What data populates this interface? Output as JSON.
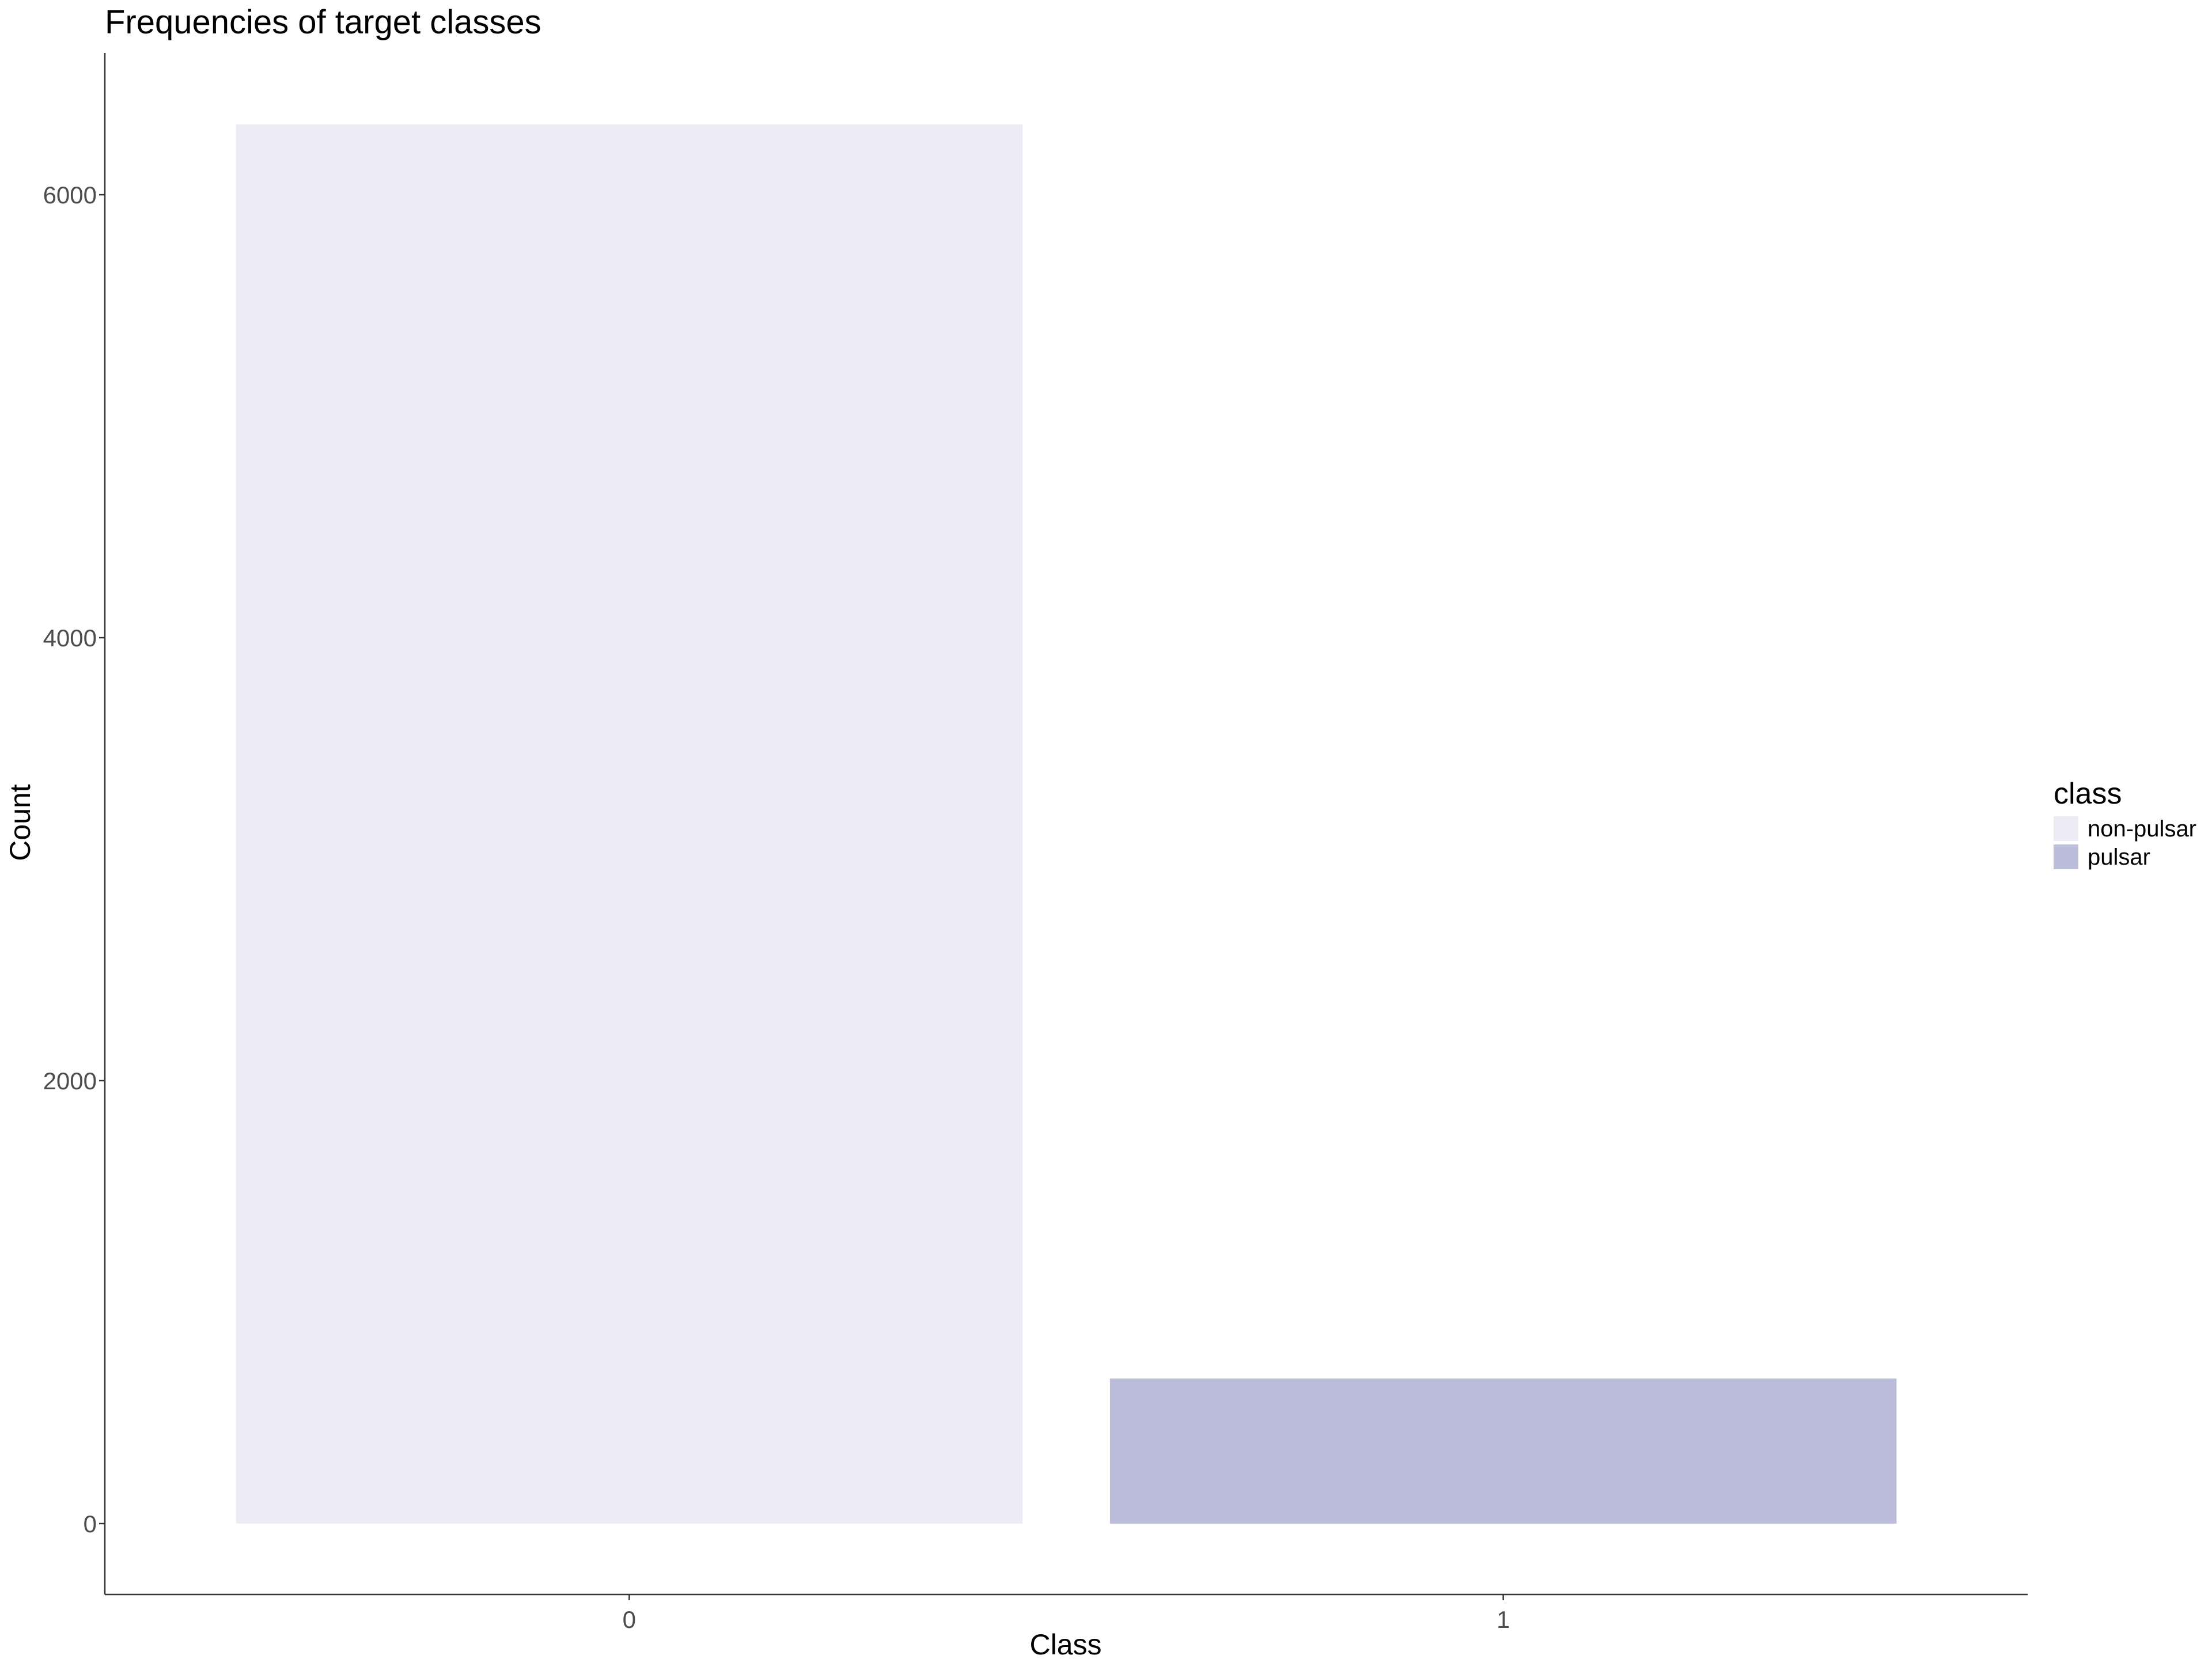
{
  "chart_data": {
    "type": "bar",
    "title": "Frequencies of target classes",
    "xlabel": "Class",
    "ylabel": "Count",
    "categories": [
      "0",
      "1"
    ],
    "values": [
      6318,
      655
    ],
    "bar_series": [
      "non-pulsar",
      "pulsar"
    ],
    "bar_colors": [
      "#edecf6",
      "#bcbcdb"
    ],
    "ylim": [
      -320,
      6640
    ],
    "yticks": [
      0,
      2000,
      4000,
      6000
    ],
    "ytick_labels": [
      "0",
      "2000",
      "4000",
      "6000"
    ],
    "grid": false,
    "legend": {
      "title": "class",
      "position": "right",
      "entries": [
        {
          "label": "non-pulsar",
          "color": "#edecf6"
        },
        {
          "label": "pulsar",
          "color": "#bcbcdb"
        }
      ]
    }
  }
}
